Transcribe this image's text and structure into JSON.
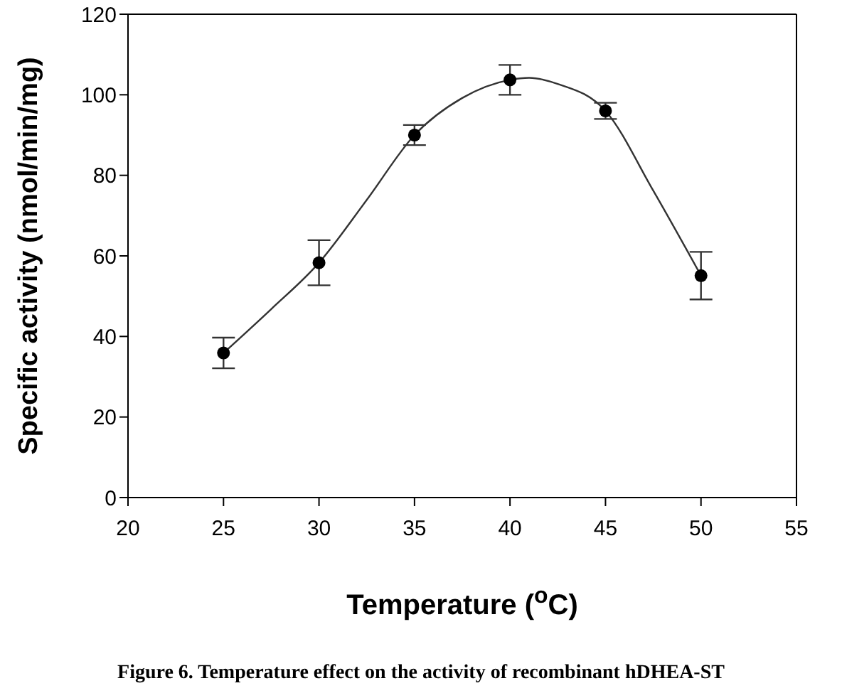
{
  "chart_data": {
    "type": "scatter",
    "xlabel": "Temperature ($^{o}$C)",
    "ylabel": "Specific activity (nmol/min/mg)",
    "annotations": [
      "Figure 6. Temperature effect on the activity of recombinant hDHEA-ST"
    ],
    "x": [
      25,
      30,
      35,
      40,
      45,
      50
    ],
    "series": [
      {
        "color": "#000000",
        "marker": "circle",
        "values": [
          35.9,
          58.3,
          90.0,
          103.7,
          96.0,
          55.1
        ],
        "errors": [
          3.8,
          5.6,
          2.5,
          3.7,
          2.0,
          5.9
        ]
      },
      {
        "type": "line",
        "color": "#333333",
        "marker": "none",
        "line_style": "solid",
        "x": [
          25,
          27.5,
          30,
          32.5,
          35,
          37.5,
          40,
          41,
          42.5,
          45,
          47.5,
          50
        ],
        "values": [
          35.9,
          46.8,
          58.3,
          73.9,
          90.0,
          99.2,
          103.7,
          104.2,
          102.7,
          96.0,
          76.2,
          55.1
        ]
      }
    ],
    "xlim": [
      20,
      55
    ],
    "xticks": [
      20,
      25,
      30,
      35,
      40,
      45,
      50,
      55
    ],
    "ylim": [
      0,
      120
    ],
    "yticks": [
      0,
      20,
      40,
      60,
      80,
      100,
      120
    ],
    "grid": false,
    "legend": false
  }
}
